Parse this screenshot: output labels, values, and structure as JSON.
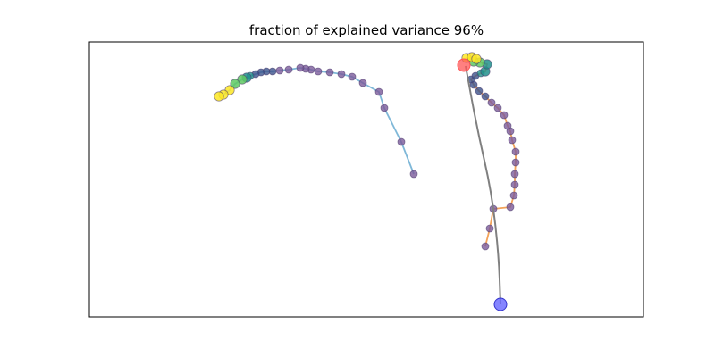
{
  "chart_data": {
    "type": "scatter",
    "title": "fraction of explained variance 96%",
    "xlim": [
      0,
      620
    ],
    "ylim": [
      0,
      308
    ],
    "grid": false,
    "colors": {
      "traj1_line": "#7fb8d8",
      "traj2_line": "#f3a35a",
      "marker_fill": "#7a5a9a",
      "marker_edge": "#4b3a6b",
      "curve": "#808080",
      "start_point": "#ff5555",
      "end_point": "#6666ff",
      "viridis": [
        "#440154",
        "#3b528b",
        "#21918c",
        "#5ec962",
        "#fde725"
      ]
    },
    "series": [
      {
        "id": "trajectory-1",
        "points": [
          {
            "x": 363,
            "y": 160
          },
          {
            "x": 349,
            "y": 196
          },
          {
            "x": 330,
            "y": 234
          },
          {
            "x": 324,
            "y": 252
          },
          {
            "x": 306,
            "y": 262
          },
          {
            "x": 294,
            "y": 269
          },
          {
            "x": 282,
            "y": 272
          },
          {
            "x": 269,
            "y": 274
          },
          {
            "x": 256,
            "y": 275
          },
          {
            "x": 248,
            "y": 277
          },
          {
            "x": 242,
            "y": 278
          },
          {
            "x": 236,
            "y": 279
          },
          {
            "x": 223,
            "y": 277
          },
          {
            "x": 213,
            "y": 276
          },
          {
            "x": 205,
            "y": 275
          },
          {
            "x": 198,
            "y": 275
          },
          {
            "x": 192,
            "y": 274
          },
          {
            "x": 186,
            "y": 272
          },
          {
            "x": 180,
            "y": 270
          },
          {
            "x": 176,
            "y": 268
          },
          {
            "x": 171,
            "y": 266
          },
          {
            "x": 163,
            "y": 261
          },
          {
            "x": 157,
            "y": 254
          },
          {
            "x": 150,
            "y": 249
          },
          {
            "x": 145,
            "y": 247
          }
        ]
      },
      {
        "id": "trajectory-2",
        "points": [
          {
            "x": 443,
            "y": 79
          },
          {
            "x": 448,
            "y": 99
          },
          {
            "x": 452,
            "y": 121
          },
          {
            "x": 471,
            "y": 123
          },
          {
            "x": 475,
            "y": 136
          },
          {
            "x": 476,
            "y": 148
          },
          {
            "x": 476,
            "y": 160
          },
          {
            "x": 477,
            "y": 173
          },
          {
            "x": 477,
            "y": 185
          },
          {
            "x": 473,
            "y": 198
          },
          {
            "x": 471,
            "y": 208
          },
          {
            "x": 468,
            "y": 214
          },
          {
            "x": 464,
            "y": 226
          },
          {
            "x": 457,
            "y": 234
          },
          {
            "x": 450,
            "y": 240
          },
          {
            "x": 443,
            "y": 247
          },
          {
            "x": 436,
            "y": 253
          },
          {
            "x": 430,
            "y": 260
          },
          {
            "x": 427,
            "y": 266
          },
          {
            "x": 432,
            "y": 270
          },
          {
            "x": 438,
            "y": 273
          },
          {
            "x": 443,
            "y": 275
          },
          {
            "x": 445,
            "y": 283
          },
          {
            "x": 437,
            "y": 285
          },
          {
            "x": 430,
            "y": 286
          },
          {
            "x": 422,
            "y": 290
          },
          {
            "x": 428,
            "y": 291
          },
          {
            "x": 433,
            "y": 289
          }
        ]
      }
    ],
    "curve": {
      "points": [
        {
          "x": 460,
          "y": 14
        },
        {
          "x": 458,
          "y": 70
        },
        {
          "x": 450,
          "y": 140
        },
        {
          "x": 434,
          "y": 210
        },
        {
          "x": 421,
          "y": 281
        }
      ]
    },
    "markers": {
      "start": {
        "x": 419,
        "y": 282
      },
      "end": {
        "x": 460,
        "y": 14
      }
    }
  }
}
